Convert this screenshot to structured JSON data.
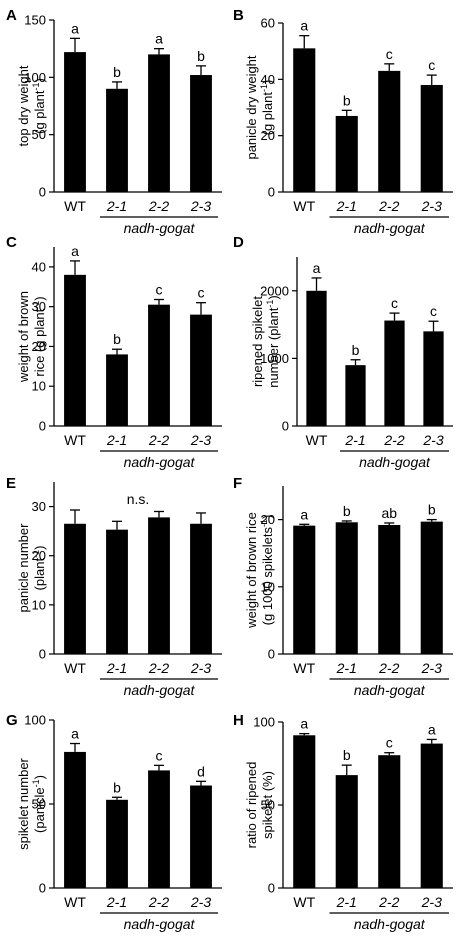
{
  "group_label": "nadh-gogat",
  "bar_color": "#000000",
  "chart_data": [
    {
      "type": "bar",
      "panel": "A",
      "categories": [
        "WT",
        "2-1",
        "2-2",
        "2-3"
      ],
      "values": [
        122,
        90,
        120,
        102
      ],
      "errors": [
        12,
        6,
        5,
        8
      ],
      "significance": [
        "a",
        "b",
        "a",
        "b"
      ],
      "ylabel_lines": [
        "top dry weight",
        "(g plant$-1$)"
      ],
      "ylim": [
        0,
        150
      ],
      "yticks": [
        0,
        50,
        100,
        150
      ]
    },
    {
      "type": "bar",
      "panel": "B",
      "categories": [
        "WT",
        "2-1",
        "2-2",
        "2-3"
      ],
      "values": [
        51,
        27,
        43,
        38
      ],
      "errors": [
        4.5,
        2,
        2.5,
        3.5
      ],
      "significance": [
        "a",
        "b",
        "c",
        "c"
      ],
      "ylabel_lines": [
        "panicle dry weight",
        "(g plant$-1$)"
      ],
      "ylim": [
        0,
        60
      ],
      "yticks": [
        0,
        20,
        40,
        60
      ]
    },
    {
      "type": "bar",
      "panel": "C",
      "categories": [
        "WT",
        "2-1",
        "2-2",
        "2-3"
      ],
      "values": [
        38,
        18,
        30.5,
        28
      ],
      "errors": [
        3.5,
        1.3,
        1.3,
        3
      ],
      "significance": [
        "a",
        "b",
        "c",
        "c"
      ],
      "ylabel_lines": [
        "weight of brown",
        "rice  (g plant$-1$)"
      ],
      "ylim": [
        0,
        45
      ],
      "yticks": [
        0,
        10,
        20,
        30,
        40
      ]
    },
    {
      "type": "bar",
      "panel": "D",
      "categories": [
        "WT",
        "2-1",
        "2-2",
        "2-3"
      ],
      "values": [
        2000,
        900,
        1560,
        1400
      ],
      "errors": [
        190,
        80,
        110,
        150
      ],
      "significance": [
        "a",
        "b",
        "c",
        "c"
      ],
      "ylabel_lines": [
        "ripened spikelet",
        "number  (plant$-1$)"
      ],
      "ylim": [
        0,
        2500
      ],
      "yticks": [
        0,
        1000,
        2000
      ]
    },
    {
      "type": "bar",
      "panel": "E",
      "categories": [
        "WT",
        "2-1",
        "2-2",
        "2-3"
      ],
      "values": [
        26.5,
        25.3,
        27.8,
        26.5
      ],
      "errors": [
        2.8,
        1.7,
        1.2,
        2.2
      ],
      "significance": [],
      "annotation": "n.s.",
      "ylabel_lines": [
        "panicle number",
        "(plant$-1$)"
      ],
      "ylim": [
        0,
        35
      ],
      "yticks": [
        0,
        10,
        20,
        30
      ]
    },
    {
      "type": "bar",
      "panel": "F",
      "categories": [
        "WT",
        "2-1",
        "2-2",
        "2-3"
      ],
      "values": [
        19.1,
        19.6,
        19.2,
        19.7
      ],
      "errors": [
        0.2,
        0.2,
        0.3,
        0.3
      ],
      "significance": [
        "a",
        "b",
        "ab",
        "b"
      ],
      "ylabel_lines": [
        "weight of brown rice",
        "(g 1000 spikelets$-1$)"
      ],
      "ylim": [
        0,
        25
      ],
      "yticks": [
        0,
        10,
        20
      ]
    },
    {
      "type": "bar",
      "panel": "G",
      "categories": [
        "WT",
        "2-1",
        "2-2",
        "2-3"
      ],
      "values": [
        81,
        52.5,
        70,
        61
      ],
      "errors": [
        5,
        1.5,
        3,
        2.5
      ],
      "significance": [
        "a",
        "b",
        "c",
        "d"
      ],
      "ylabel_lines": [
        "spikelet number",
        "(panicle$-1$)"
      ],
      "ylim": [
        0,
        100
      ],
      "yticks": [
        0,
        50,
        100
      ]
    },
    {
      "type": "bar",
      "panel": "H",
      "categories": [
        "WT",
        "2-1",
        "2-2",
        "2-3"
      ],
      "values": [
        92,
        68,
        80,
        87
      ],
      "errors": [
        1,
        6,
        1.5,
        2.5
      ],
      "significance": [
        "a",
        "b",
        "c",
        "a"
      ],
      "ylabel_lines": [
        "ratio of ripened",
        "spikelet (%)"
      ],
      "ylim": [
        0,
        100
      ],
      "yticks": [
        0,
        50,
        100
      ]
    }
  ]
}
